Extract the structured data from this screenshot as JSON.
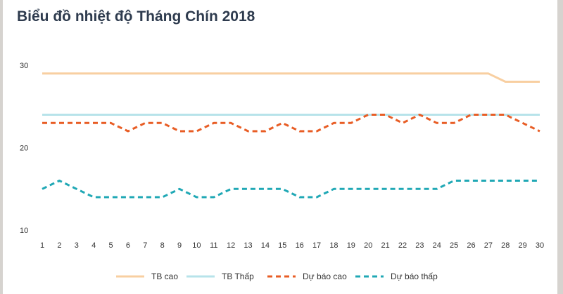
{
  "chart_data": {
    "type": "line",
    "title": "Biểu đồ nhiệt độ Tháng Chín 2018",
    "xlabel": "",
    "ylabel": "",
    "x": [
      1,
      2,
      3,
      4,
      5,
      6,
      7,
      8,
      9,
      10,
      11,
      12,
      13,
      14,
      15,
      16,
      17,
      18,
      19,
      20,
      21,
      22,
      23,
      24,
      25,
      26,
      27,
      28,
      29,
      30
    ],
    "y_ticks": [
      10,
      20,
      30
    ],
    "ylim": [
      10,
      30
    ],
    "grid": false,
    "legend_position": "bottom",
    "series": [
      {
        "name": "TB cao",
        "color": "#f8cfa1",
        "dash": "solid",
        "values": [
          29,
          29,
          29,
          29,
          29,
          29,
          29,
          29,
          29,
          29,
          29,
          29,
          29,
          29,
          29,
          29,
          29,
          29,
          29,
          29,
          29,
          29,
          29,
          29,
          29,
          29,
          29,
          28,
          28,
          28
        ]
      },
      {
        "name": "TB Thấp",
        "color": "#b7e3ea",
        "dash": "solid",
        "values": [
          24,
          24,
          24,
          24,
          24,
          24,
          24,
          24,
          24,
          24,
          24,
          24,
          24,
          24,
          24,
          24,
          24,
          24,
          24,
          24,
          24,
          24,
          24,
          24,
          24,
          24,
          24,
          24,
          24,
          24
        ]
      },
      {
        "name": "Dự báo cao",
        "color": "#e85d25",
        "dash": "dashed",
        "values": [
          23,
          23,
          23,
          23,
          23,
          22,
          23,
          23,
          22,
          22,
          23,
          23,
          22,
          22,
          23,
          22,
          22,
          23,
          23,
          24,
          24,
          23,
          24,
          23,
          23,
          24,
          24,
          24,
          23,
          22
        ]
      },
      {
        "name": "Dự báo thấp",
        "color": "#20a8b5",
        "dash": "dashed",
        "values": [
          15,
          16,
          15,
          14,
          14,
          14,
          14,
          14,
          15,
          14,
          14,
          15,
          15,
          15,
          15,
          14,
          14,
          15,
          15,
          15,
          15,
          15,
          15,
          15,
          16,
          16,
          16,
          16,
          16,
          16
        ]
      }
    ]
  }
}
